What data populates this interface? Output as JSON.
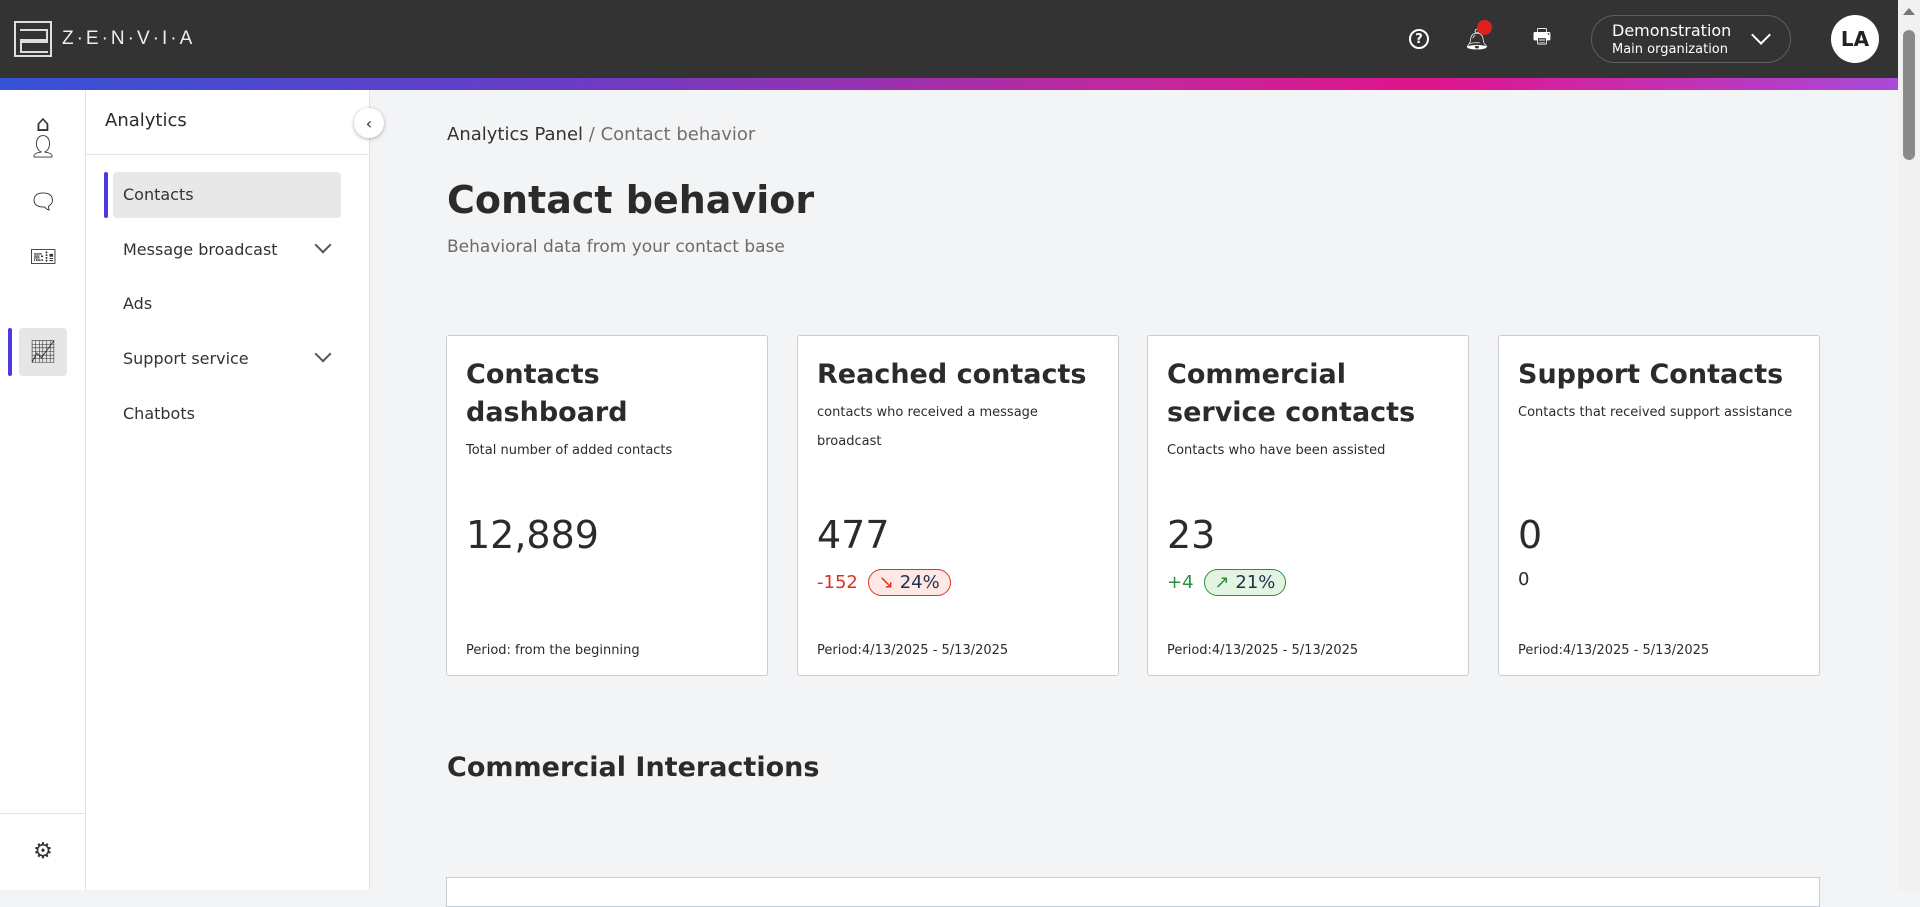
{
  "header": {
    "logo_text": "Z·E·N·V·I·A",
    "org_name": "Demonstration",
    "org_sub": "Main organization",
    "avatar": "LA",
    "notification_dot_color": "#e02020"
  },
  "rail": {
    "items": [
      "home",
      "contacts",
      "messages",
      "tickets",
      "analytics"
    ],
    "active": "analytics",
    "bottom": "settings"
  },
  "sidebar": {
    "title": "Analytics",
    "items": [
      {
        "label": "Contacts",
        "active": true
      },
      {
        "label": "Message broadcast",
        "expandable": true
      },
      {
        "label": "Ads"
      },
      {
        "label": "Support service",
        "expandable": true
      },
      {
        "label": "Chatbots"
      }
    ]
  },
  "breadcrumb": {
    "parent": "Analytics Panel",
    "separator": "/",
    "current": "Contact behavior"
  },
  "page": {
    "title": "Contact behavior",
    "subtitle": "Behavioral data from your contact base"
  },
  "cards": [
    {
      "title": "Contacts dashboard",
      "desc": "Total number of added contacts",
      "value": "12,889",
      "period": "Period: from the beginning"
    },
    {
      "title": "Reached contacts",
      "desc": "contacts who received a message broadcast",
      "value": "477",
      "delta": "-152",
      "pct": "24%",
      "trend": "down",
      "period": "Period:4/13/2025 - 5/13/2025"
    },
    {
      "title": "Commercial service contacts",
      "desc": "Contacts who have been assisted",
      "value": "23",
      "delta": "+4",
      "pct": "21%",
      "trend": "up",
      "period": "Period:4/13/2025 - 5/13/2025"
    },
    {
      "title": "Support Contacts",
      "desc": "Contacts that received support assistance",
      "value": "0",
      "delta": "0",
      "period": "Period:4/13/2025 - 5/13/2025"
    }
  ],
  "section": {
    "title": "Commercial Interactions"
  },
  "colors": {
    "down": "#e03020",
    "up": "#2a9040",
    "accent": "#4b3ae0"
  }
}
